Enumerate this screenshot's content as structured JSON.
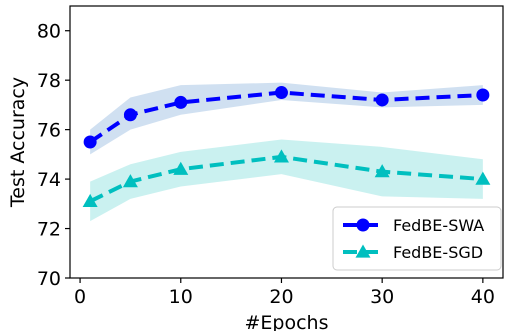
{
  "chart_data": {
    "type": "line",
    "title": "",
    "xlabel": "#Epochs",
    "ylabel": "Test Accuracy",
    "xlim": [
      -1,
      42
    ],
    "ylim": [
      70,
      81
    ],
    "xticks": [
      0,
      10,
      20,
      30,
      40
    ],
    "yticks": [
      70,
      72,
      74,
      76,
      78,
      80
    ],
    "grid": false,
    "legend_position": "lower-right",
    "series": [
      {
        "name": "FedBE-SWA",
        "color": "#0000ff",
        "band_color": "#a9c6e6",
        "marker": "circle",
        "x": [
          1,
          5,
          10,
          20,
          30,
          40
        ],
        "y": [
          75.5,
          76.6,
          77.1,
          77.5,
          77.2,
          77.4
        ],
        "lower": [
          75.0,
          76.0,
          76.6,
          77.2,
          76.9,
          77.0
        ],
        "upper": [
          76.0,
          77.3,
          77.8,
          77.9,
          77.5,
          77.8
        ]
      },
      {
        "name": "FedBE-SGD",
        "color": "#00bfbf",
        "band_color": "#9ee6e3",
        "marker": "triangle",
        "x": [
          1,
          5,
          10,
          20,
          30,
          40
        ],
        "y": [
          73.1,
          73.9,
          74.4,
          74.9,
          74.3,
          74.0
        ],
        "lower": [
          72.3,
          73.2,
          73.7,
          74.2,
          73.3,
          73.2
        ],
        "upper": [
          73.9,
          74.6,
          75.1,
          75.6,
          75.3,
          74.8
        ]
      }
    ]
  }
}
